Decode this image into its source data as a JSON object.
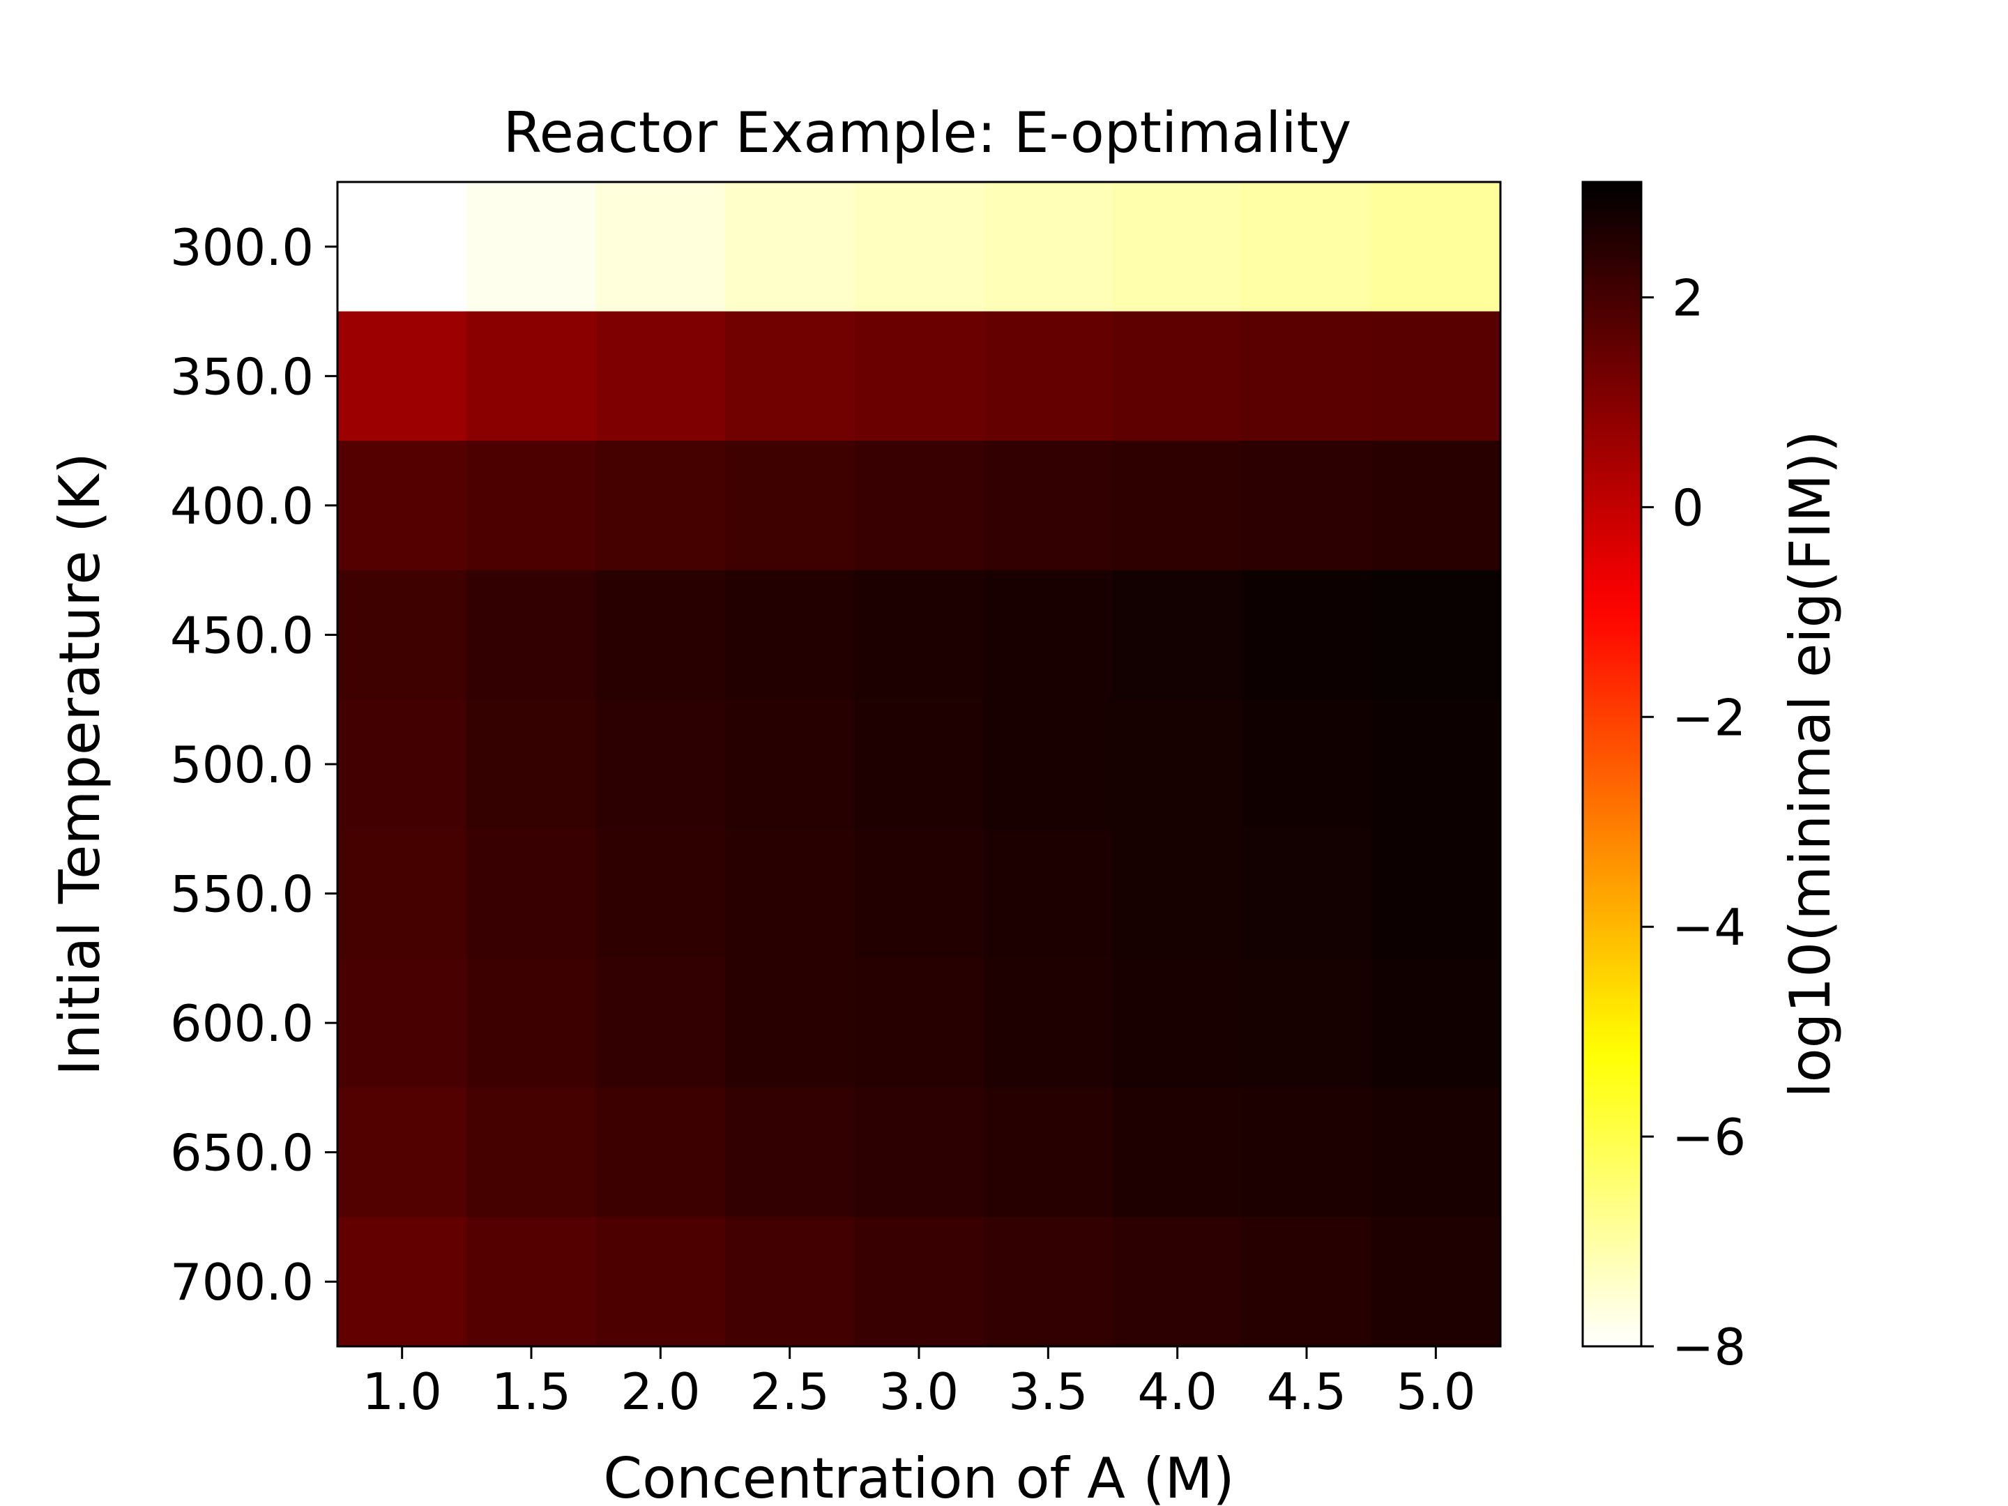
{
  "chart_data": {
    "type": "heatmap",
    "title": "Reactor Example: E-optimality",
    "xlabel": "Concentration of A (M)",
    "ylabel": "Initial Temperature (K)",
    "x_categories": [
      "1.0",
      "1.5",
      "2.0",
      "2.5",
      "3.0",
      "3.5",
      "4.0",
      "4.5",
      "5.0"
    ],
    "y_categories": [
      "300.0",
      "350.0",
      "400.0",
      "450.0",
      "500.0",
      "550.0",
      "600.0",
      "650.0",
      "700.0"
    ],
    "values": [
      [
        -8.0,
        -7.8,
        -7.6,
        -7.4,
        -7.3,
        -7.2,
        -7.1,
        -7.0,
        -6.9
      ],
      [
        0.6,
        0.9,
        1.1,
        1.3,
        1.4,
        1.5,
        1.6,
        1.65,
        1.7
      ],
      [
        1.75,
        1.9,
        2.0,
        2.1,
        2.2,
        2.3,
        2.35,
        2.4,
        2.45
      ],
      [
        2.1,
        2.3,
        2.45,
        2.55,
        2.65,
        2.7,
        2.8,
        2.9,
        2.95
      ],
      [
        2.05,
        2.25,
        2.4,
        2.5,
        2.6,
        2.7,
        2.75,
        2.85,
        2.9
      ],
      [
        2.0,
        2.2,
        2.35,
        2.45,
        2.55,
        2.65,
        2.75,
        2.8,
        2.9
      ],
      [
        1.95,
        2.15,
        2.3,
        2.45,
        2.5,
        2.6,
        2.7,
        2.75,
        2.85
      ],
      [
        1.8,
        2.0,
        2.15,
        2.3,
        2.4,
        2.5,
        2.6,
        2.65,
        2.7
      ],
      [
        1.55,
        1.75,
        1.9,
        2.05,
        2.2,
        2.3,
        2.4,
        2.5,
        2.6
      ]
    ],
    "colormap": "hot_r",
    "colorbar": {
      "label": "log10(minimal eig(FIM))",
      "range": [
        -8,
        3.1
      ],
      "ticks": [
        2,
        0,
        -2,
        -4,
        -6,
        -8
      ],
      "tick_labels": [
        "2",
        "0",
        "−2",
        "−4",
        "−6",
        "−8"
      ]
    },
    "grid": false
  }
}
